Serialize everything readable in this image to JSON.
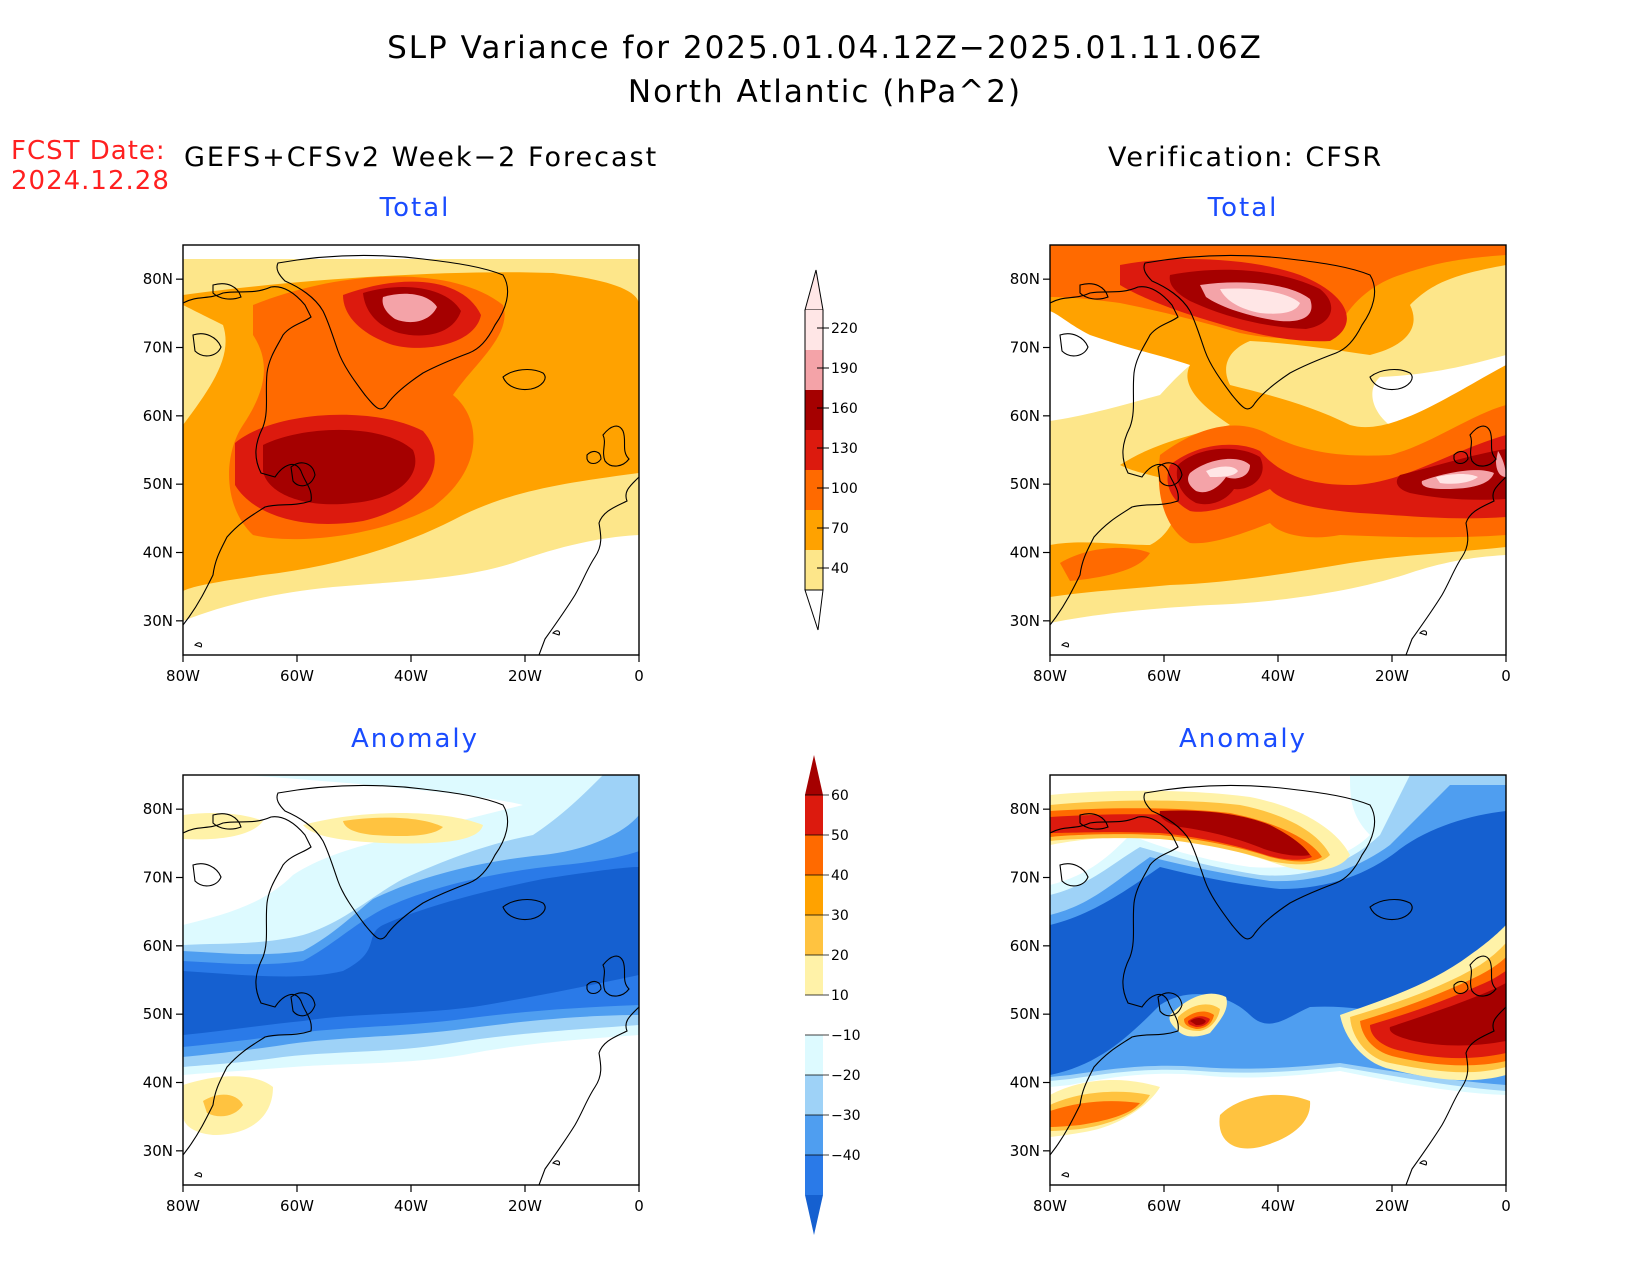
{
  "header": {
    "title_line1": "SLP Variance for 2025.01.04.12Z−2025.01.11.06Z",
    "title_line2": "North Atlantic (hPa^2)",
    "fcst_label": "FCST Date:",
    "fcst_date": "2024.12.28",
    "left_column_title": "GEFS+CFSv2 Week−2 Forecast",
    "right_column_title": "Verification: CFSR"
  },
  "panels": {
    "forecast_total_title": "Total",
    "verification_total_title": "Total",
    "forecast_anomaly_title": "Anomaly",
    "verification_anomaly_title": "Anomaly"
  },
  "axes": {
    "lon_ticks": [
      "80W",
      "60W",
      "40W",
      "20W",
      "0"
    ],
    "lat_ticks": [
      "80N",
      "70N",
      "60N",
      "50N",
      "40N",
      "30N"
    ],
    "lon_range": [
      -80,
      0
    ],
    "lat_range": [
      25,
      85
    ]
  },
  "legends": {
    "total": {
      "levels": [
        "220",
        "190",
        "160",
        "130",
        "100",
        "70",
        "40"
      ],
      "colors": [
        "#ffe6e6",
        "#f4a3a8",
        "#a50000",
        "#dc1a0e",
        "#ff6a00",
        "#ffa200",
        "#fde68a"
      ]
    },
    "anomaly": {
      "levels": [
        "60",
        "50",
        "40",
        "30",
        "20",
        "10",
        "−10",
        "−20",
        "−30",
        "−40"
      ],
      "colors": [
        "#a50000",
        "#dc1a0e",
        "#ff6a00",
        "#ffa200",
        "#ffc340",
        "#fff2a8",
        "#ffffff",
        "#ddfaff",
        "#9ed2f7",
        "#4f9ef0",
        "#2a7ae8",
        "#1560d0"
      ]
    }
  },
  "colors": {
    "title_blue": "#1a4cff",
    "fcst_red": "#ff2020",
    "ocean_default_total": "#fde68a",
    "ocean_default_anomaly": "#ffffff"
  }
}
